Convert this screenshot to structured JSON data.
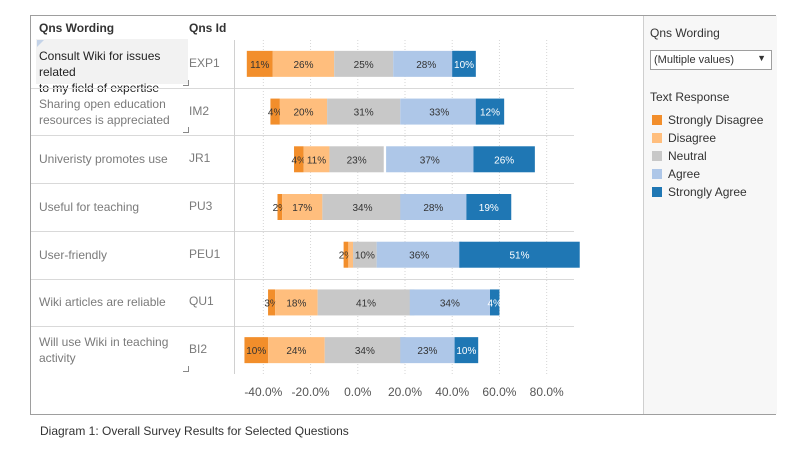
{
  "headers": {
    "wording": "Qns Wording",
    "id": "Qns Id"
  },
  "rows": [
    {
      "wording_lines": [
        "Consult Wiki for issues related",
        "to my field of expertise"
      ],
      "id": "EXP1"
    },
    {
      "wording_lines": [
        "Sharing open education",
        "resources is appreciated"
      ],
      "id": "IM2"
    },
    {
      "wording_lines": [
        "Univeristy promotes use"
      ],
      "id": "JR1"
    },
    {
      "wording_lines": [
        "Useful for teaching"
      ],
      "id": "PU3"
    },
    {
      "wording_lines": [
        "User-friendly"
      ],
      "id": "PEU1"
    },
    {
      "wording_lines": [
        "Wiki articles are reliable"
      ],
      "id": "QU1"
    },
    {
      "wording_lines": [
        "Will use Wiki in teaching",
        "activity"
      ],
      "id": "BI2"
    }
  ],
  "filter": {
    "title": "Qns Wording",
    "value": "(Multiple values)"
  },
  "legend": {
    "title": "Text Response",
    "items": [
      {
        "label": "Strongly Disagree",
        "color": "#f28e2b"
      },
      {
        "label": "Disagree",
        "color": "#ffbe7d"
      },
      {
        "label": "Neutral",
        "color": "#c8c8c8"
      },
      {
        "label": "Agree",
        "color": "#aec7e8"
      },
      {
        "label": "Strongly Agree",
        "color": "#1f77b4"
      }
    ]
  },
  "caption": "Diagram 1: Overall Survey Results for Selected Questions",
  "chart_data": {
    "type": "bar",
    "orientation": "horizontal-diverging-stacked",
    "categories": [
      "EXP1",
      "IM2",
      "JR1",
      "PU3",
      "PEU1",
      "QU1",
      "BI2"
    ],
    "series": [
      {
        "name": "Strongly Disagree",
        "values": [
          11,
          4,
          4,
          2,
          2,
          3,
          10
        ],
        "labels": [
          "11%",
          "4%",
          "4%",
          "2%",
          "2%",
          "3%",
          "10%"
        ],
        "start": [
          -47,
          -37,
          -27,
          -34,
          -6,
          -38,
          -48
        ],
        "color": "#f28e2b",
        "label_color": "#333333"
      },
      {
        "name": "Disagree",
        "values": [
          26,
          20,
          11,
          17,
          2,
          18,
          24
        ],
        "labels": [
          "26%",
          "20%",
          "11%",
          "17%",
          "",
          "18%",
          "24%"
        ],
        "start": [
          -36,
          -33,
          -23,
          -32,
          -4,
          -35,
          -38
        ],
        "color": "#ffbe7d",
        "label_color": "#333333"
      },
      {
        "name": "Neutral",
        "values": [
          25,
          31,
          23,
          34,
          10,
          41,
          34
        ],
        "labels": [
          "25%",
          "31%",
          "23%",
          "34%",
          "10%",
          "41%",
          "34%"
        ],
        "start": [
          -10,
          -13,
          -12,
          -15,
          -2,
          -17,
          -14
        ],
        "color": "#c8c8c8",
        "label_color": "#333333"
      },
      {
        "name": "Agree",
        "values": [
          28,
          33,
          37,
          28,
          36,
          34,
          23
        ],
        "labels": [
          "28%",
          "33%",
          "37%",
          "28%",
          "36%",
          "34%",
          "23%"
        ],
        "start": [
          15,
          18,
          12,
          18,
          8,
          22,
          18
        ],
        "color": "#aec7e8",
        "label_color": "#333333"
      },
      {
        "name": "Strongly Agree",
        "values": [
          10,
          12,
          26,
          19,
          51,
          4,
          10
        ],
        "labels": [
          "10%",
          "12%",
          "26%",
          "19%",
          "51%",
          "4%",
          "10%"
        ],
        "start": [
          40,
          50,
          49,
          46,
          43,
          56,
          41
        ],
        "color": "#1f77b4",
        "label_color": "#ffffff"
      }
    ],
    "x_ticks": [
      "-40.0%",
      "-20.0%",
      "0.0%",
      "20.0%",
      "40.0%",
      "60.0%",
      "80.0%"
    ],
    "x_tick_values": [
      -40,
      -20,
      0,
      20,
      40,
      60,
      80
    ],
    "xlim": [
      -52,
      92
    ],
    "grid": "vertical-dotted",
    "legend_position": "right"
  }
}
